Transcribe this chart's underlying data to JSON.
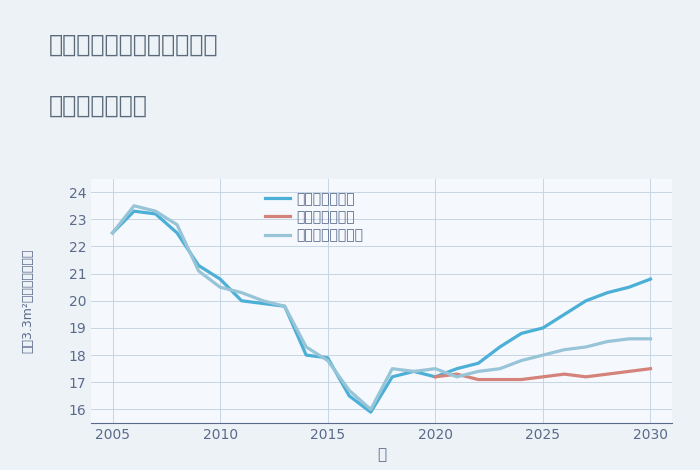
{
  "title_line1": "兵庫県豊岡市出石町宮内の",
  "title_line2": "土地の価格推移",
  "xlabel": "年",
  "ylabel_tsubo": "坪（3.3m",
  "ylabel_sup": "2",
  "ylabel_rest": "）単価（万円）",
  "ylim": [
    15.5,
    24.5
  ],
  "xlim": [
    2004,
    2031
  ],
  "yticks": [
    16,
    17,
    18,
    19,
    20,
    21,
    22,
    23,
    24
  ],
  "xticks": [
    2005,
    2010,
    2015,
    2020,
    2025,
    2030
  ],
  "background_color": "#edf2f7",
  "plot_background": "#f5f8fc",
  "grid_color": "#c5d5e5",
  "good_color": "#4bafd6",
  "bad_color": "#d4827a",
  "normal_color": "#98c4d8",
  "line_width": 2.3,
  "good_scenario": {
    "years": [
      2005,
      2006,
      2007,
      2008,
      2009,
      2010,
      2011,
      2012,
      2013,
      2014,
      2015,
      2016,
      2017,
      2018,
      2019,
      2020,
      2021,
      2022,
      2023,
      2024,
      2025,
      2026,
      2027,
      2028,
      2029,
      2030
    ],
    "values": [
      22.5,
      23.3,
      23.2,
      22.5,
      21.3,
      20.8,
      20.0,
      19.9,
      19.8,
      18.0,
      17.9,
      16.5,
      15.9,
      17.2,
      17.4,
      17.2,
      17.5,
      17.7,
      18.3,
      18.8,
      19.0,
      19.5,
      20.0,
      20.3,
      20.5,
      20.8
    ]
  },
  "bad_scenario": {
    "years": [
      2020,
      2021,
      2022,
      2023,
      2024,
      2025,
      2026,
      2027,
      2028,
      2029,
      2030
    ],
    "values": [
      17.2,
      17.3,
      17.1,
      17.1,
      17.1,
      17.2,
      17.3,
      17.2,
      17.3,
      17.4,
      17.5
    ]
  },
  "normal_scenario": {
    "years": [
      2005,
      2006,
      2007,
      2008,
      2009,
      2010,
      2011,
      2012,
      2013,
      2014,
      2015,
      2016,
      2017,
      2018,
      2019,
      2020,
      2021,
      2022,
      2023,
      2024,
      2025,
      2026,
      2027,
      2028,
      2029,
      2030
    ],
    "values": [
      22.5,
      23.5,
      23.3,
      22.8,
      21.1,
      20.5,
      20.3,
      20.0,
      19.8,
      18.3,
      17.8,
      16.7,
      16.0,
      17.5,
      17.4,
      17.5,
      17.2,
      17.4,
      17.5,
      17.8,
      18.0,
      18.2,
      18.3,
      18.5,
      18.6,
      18.6
    ]
  },
  "legend_labels": [
    "グッドシナリオ",
    "バッドシナリオ",
    "ノーマルシナリオ"
  ],
  "title_color": "#5a6a7a",
  "axis_color": "#5a6a8a",
  "tick_color": "#5a6a8a",
  "title_fontsize": 17,
  "tick_fontsize": 10,
  "label_fontsize": 11,
  "legend_fontsize": 10
}
